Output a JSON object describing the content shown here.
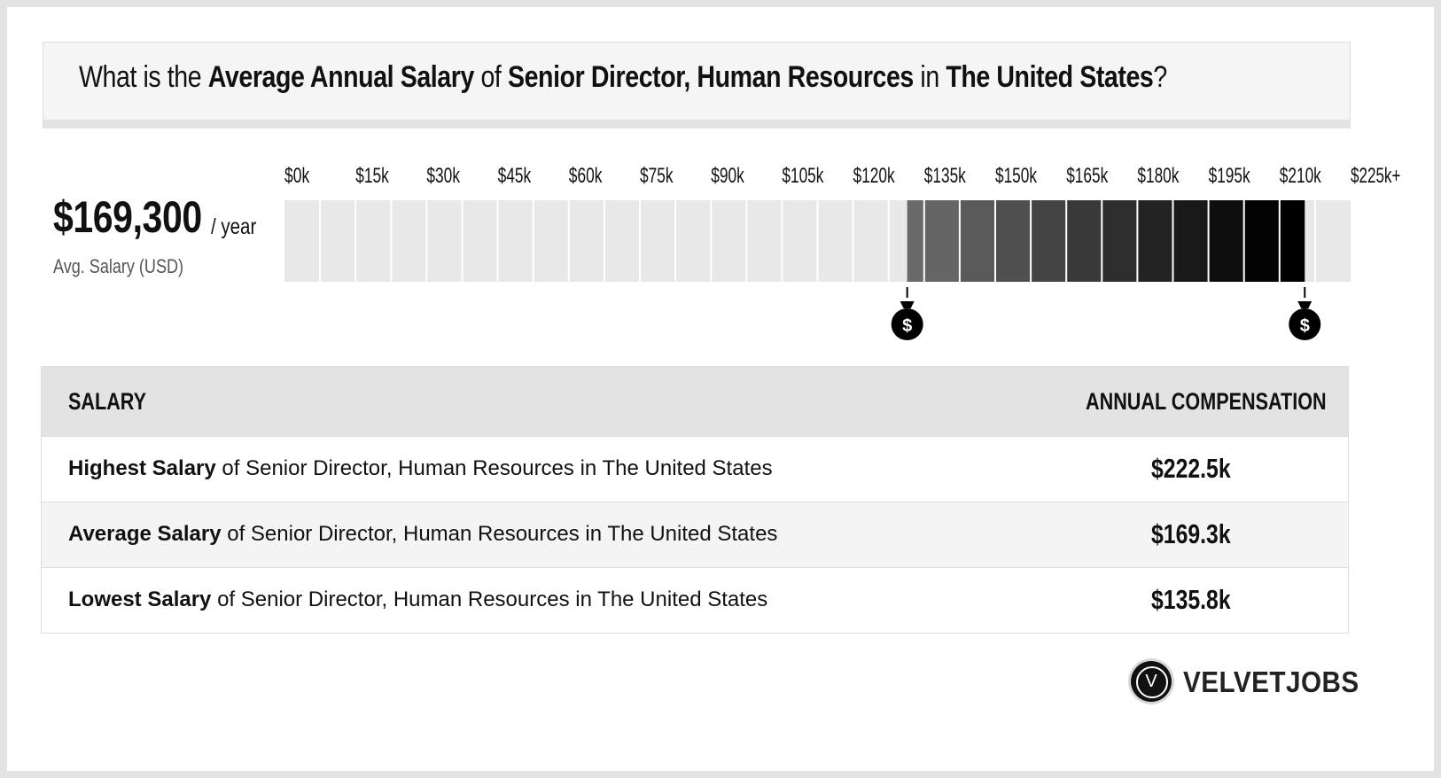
{
  "title": {
    "prefix": "What is the ",
    "metric": "Average Annual Salary",
    "of": " of ",
    "job": "Senior Director, Human Resources",
    "in": " in ",
    "location": "The United States",
    "suffix": "?"
  },
  "average": {
    "value": "$169,300",
    "unit": "/ year",
    "label": "Avg. Salary (USD)"
  },
  "chart_data": {
    "type": "bar",
    "tick_labels": [
      "$0k",
      "$15k",
      "$30k",
      "$45k",
      "$60k",
      "$75k",
      "$90k",
      "$105k",
      "$120k",
      "$135k",
      "$150k",
      "$165k",
      "$180k",
      "$195k",
      "$210k",
      "$225k+"
    ],
    "x_range": [
      0,
      225
    ],
    "range_low": 135.8,
    "range_high": 222.5,
    "x_unit": "k USD",
    "colors": {
      "empty": "#e8e8e8",
      "range_start": "#6a6a6a",
      "range_end": "#000000",
      "marker": "#000000"
    }
  },
  "table": {
    "col_left": "SALARY",
    "col_right": "ANNUAL COMPENSATION",
    "rows": [
      {
        "bold": "Highest Salary",
        "rest": " of Senior Director, Human Resources in The United States",
        "value": "$222.5k"
      },
      {
        "bold": "Average Salary",
        "rest": " of Senior Director, Human Resources in The United States",
        "value": "$169.3k"
      },
      {
        "bold": "Lowest Salary",
        "rest": " of Senior Director, Human Resources in The United States",
        "value": "$135.8k"
      }
    ]
  },
  "logo": {
    "mark": "V",
    "text": "VELVETJOBS"
  }
}
